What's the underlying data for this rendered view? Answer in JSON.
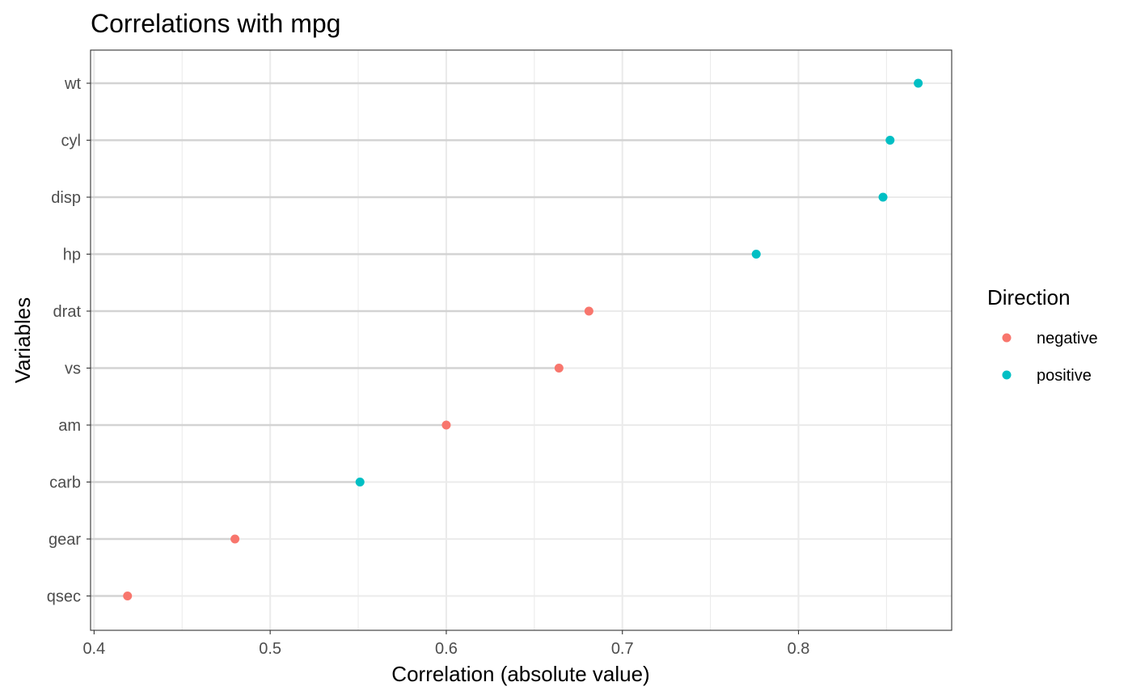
{
  "chart_data": {
    "type": "scatter",
    "subtype": "lollipop",
    "title": "Correlations with mpg",
    "xlabel": "Correlation (absolute value)",
    "ylabel": "Variables",
    "xlim": [
      0.398,
      0.887
    ],
    "x_ticks": [
      0.4,
      0.5,
      0.6,
      0.7,
      0.8
    ],
    "x_tick_labels": [
      "0.4",
      "0.5",
      "0.6",
      "0.7",
      "0.8"
    ],
    "categories": [
      "wt",
      "cyl",
      "disp",
      "hp",
      "drat",
      "vs",
      "am",
      "carb",
      "gear",
      "qsec"
    ],
    "values": [
      0.868,
      0.852,
      0.848,
      0.776,
      0.681,
      0.664,
      0.6,
      0.551,
      0.48,
      0.419
    ],
    "direction": [
      "positive",
      "positive",
      "positive",
      "positive",
      "negative",
      "negative",
      "negative",
      "positive",
      "negative",
      "negative"
    ],
    "grid": true,
    "legend": {
      "title": "Direction",
      "placement": "right",
      "entries": [
        {
          "name": "negative",
          "color": "#F8766D"
        },
        {
          "name": "positive",
          "color": "#00BFC4"
        }
      ]
    }
  }
}
